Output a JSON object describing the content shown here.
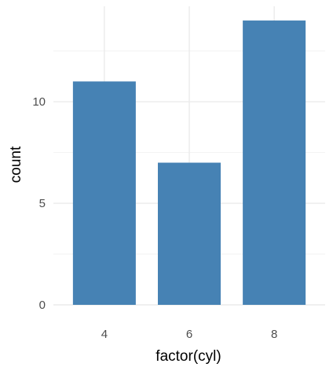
{
  "chart_data": {
    "type": "bar",
    "categories": [
      "4",
      "6",
      "8"
    ],
    "values": [
      11,
      7,
      14
    ],
    "xlabel": "factor(cyl)",
    "ylabel": "count",
    "ylim": [
      0,
      14.7
    ],
    "yticks": [
      0,
      5,
      10
    ],
    "grid": true,
    "legend": "none",
    "colors": {
      "bar": "#4682B4",
      "grid_major": "#EBEBEB",
      "grid_minor": "#F2F2F2",
      "tick_text": "#4D4D4D",
      "title_text": "#000000"
    }
  }
}
